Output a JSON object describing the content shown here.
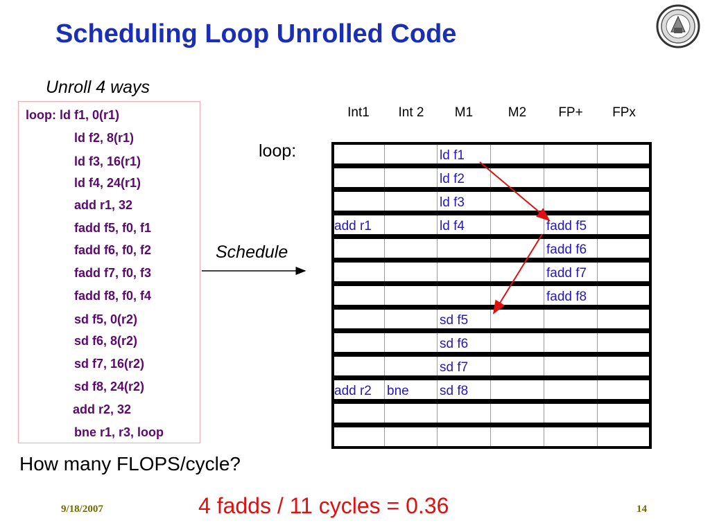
{
  "title": "Scheduling Loop Unrolled Code",
  "subtitle": "Unroll 4 ways",
  "code": [
    "loop:  ld f1, 0(r1)",
    "ld f2, 8(r1)",
    "ld f3, 16(r1)",
    "ld f4, 24(r1)",
    "add r1, 32",
    "fadd f5, f0, f1",
    "fadd f6, f0, f2",
    "fadd f7, f0, f3",
    "fadd f8, f0, f4",
    "sd f5, 0(r2)",
    "sd f6, 8(r2)",
    "sd f7, 16(r2)",
    "sd f8, 24(r2)",
    "add r2, 32",
    "bne r1, r3, loop"
  ],
  "schedule_label": "Schedule",
  "loop_label": "loop:",
  "columns": [
    "Int1",
    "Int 2",
    "M1",
    "M2",
    "FP+",
    "FPx"
  ],
  "rows": [
    [
      "",
      "",
      "ld f1",
      "",
      "",
      ""
    ],
    [
      "",
      "",
      "ld f2",
      "",
      "",
      ""
    ],
    [
      "",
      "",
      "ld f3",
      "",
      "",
      ""
    ],
    [
      "add r1",
      "",
      "ld f4",
      "",
      "fadd f5",
      ""
    ],
    [
      "",
      "",
      "",
      "",
      "fadd f6",
      ""
    ],
    [
      "",
      "",
      "",
      "",
      "fadd f7",
      ""
    ],
    [
      "",
      "",
      "",
      "",
      "fadd f8",
      ""
    ],
    [
      "",
      "",
      "sd f5",
      "",
      "",
      ""
    ],
    [
      "",
      "",
      "sd f6",
      "",
      "",
      ""
    ],
    [
      "",
      "",
      "sd f7",
      "",
      "",
      ""
    ],
    [
      "add r2",
      "bne",
      "sd f8",
      "",
      "",
      ""
    ],
    [
      "",
      "",
      "",
      "",
      "",
      ""
    ],
    [
      "",
      "",
      "",
      "",
      "",
      ""
    ]
  ],
  "question": "How many FLOPS/cycle?",
  "answer": "4 fadds / 11 cycles = 0.36",
  "footer": {
    "date": "9/18/2007",
    "page": "14"
  },
  "colors": {
    "title": "#1a2fb5",
    "code": "#5a0a6e",
    "cell_text": "#2418b8",
    "arrow": "#e01010",
    "answer": "#e01010"
  },
  "icons": {
    "logo": "university-seal-logo"
  }
}
